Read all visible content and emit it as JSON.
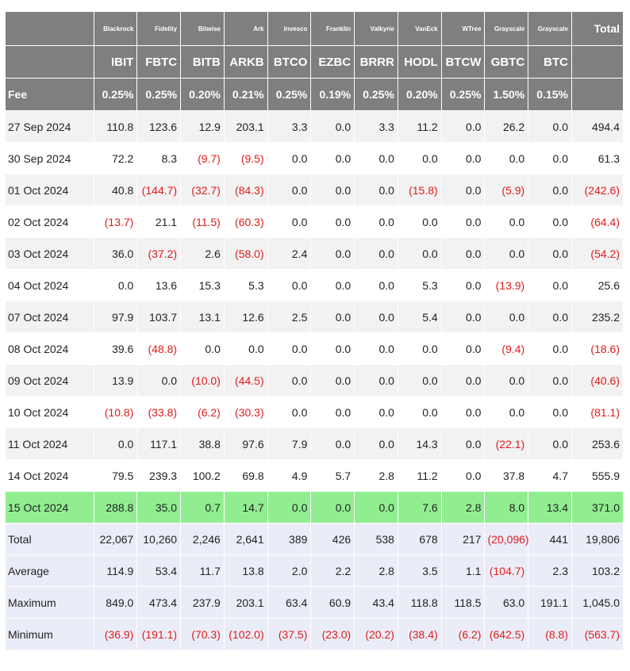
{
  "issuers": [
    "Blackrock",
    "Fidelity",
    "Bitwise",
    "Ark",
    "Invesco",
    "Franklin",
    "Valkyrie",
    "VanEck",
    "WTree",
    "Grayscale",
    "Grayscale"
  ],
  "total_label": "Total",
  "tickers": [
    "IBIT",
    "FBTC",
    "BITB",
    "ARKB",
    "BTCO",
    "EZBC",
    "BRRR",
    "HODL",
    "BTCW",
    "GBTC",
    "BTC"
  ],
  "fee_label": "Fee",
  "fees": [
    "0.25%",
    "0.25%",
    "0.20%",
    "0.21%",
    "0.25%",
    "0.19%",
    "0.25%",
    "0.20%",
    "0.25%",
    "1.50%",
    "0.15%"
  ],
  "colors": {
    "header_bg": "#7f7f7f",
    "row_alt": "#f2f2f2",
    "highlight": "#90ee90",
    "summary_bg": "#eaedf7",
    "negative": "#e01b1b"
  },
  "rows": [
    {
      "label": "27 Sep 2024",
      "values": [
        "110.8",
        "123.6",
        "12.9",
        "203.1",
        "3.3",
        "0.0",
        "3.3",
        "11.2",
        "0.0",
        "26.2",
        "0.0",
        "494.4"
      ]
    },
    {
      "label": "30 Sep 2024",
      "values": [
        "72.2",
        "8.3",
        "(9.7)",
        "(9.5)",
        "0.0",
        "0.0",
        "0.0",
        "0.0",
        "0.0",
        "0.0",
        "0.0",
        "61.3"
      ]
    },
    {
      "label": "01 Oct 2024",
      "values": [
        "40.8",
        "(144.7)",
        "(32.7)",
        "(84.3)",
        "0.0",
        "0.0",
        "0.0",
        "(15.8)",
        "0.0",
        "(5.9)",
        "0.0",
        "(242.6)"
      ]
    },
    {
      "label": "02 Oct 2024",
      "values": [
        "(13.7)",
        "21.1",
        "(11.5)",
        "(60.3)",
        "0.0",
        "0.0",
        "0.0",
        "0.0",
        "0.0",
        "0.0",
        "0.0",
        "(64.4)"
      ]
    },
    {
      "label": "03 Oct 2024",
      "values": [
        "36.0",
        "(37.2)",
        "2.6",
        "(58.0)",
        "2.4",
        "0.0",
        "0.0",
        "0.0",
        "0.0",
        "0.0",
        "0.0",
        "(54.2)"
      ]
    },
    {
      "label": "04 Oct 2024",
      "values": [
        "0.0",
        "13.6",
        "15.3",
        "5.3",
        "0.0",
        "0.0",
        "0.0",
        "5.3",
        "0.0",
        "(13.9)",
        "0.0",
        "25.6"
      ]
    },
    {
      "label": "07 Oct 2024",
      "values": [
        "97.9",
        "103.7",
        "13.1",
        "12.6",
        "2.5",
        "0.0",
        "0.0",
        "5.4",
        "0.0",
        "0.0",
        "0.0",
        "235.2"
      ]
    },
    {
      "label": "08 Oct 2024",
      "values": [
        "39.6",
        "(48.8)",
        "0.0",
        "0.0",
        "0.0",
        "0.0",
        "0.0",
        "0.0",
        "0.0",
        "(9.4)",
        "0.0",
        "(18.6)"
      ]
    },
    {
      "label": "09 Oct 2024",
      "values": [
        "13.9",
        "0.0",
        "(10.0)",
        "(44.5)",
        "0.0",
        "0.0",
        "0.0",
        "0.0",
        "0.0",
        "0.0",
        "0.0",
        "(40.6)"
      ]
    },
    {
      "label": "10 Oct 2024",
      "values": [
        "(10.8)",
        "(33.8)",
        "(6.2)",
        "(30.3)",
        "0.0",
        "0.0",
        "0.0",
        "0.0",
        "0.0",
        "0.0",
        "0.0",
        "(81.1)"
      ]
    },
    {
      "label": "11 Oct 2024",
      "values": [
        "0.0",
        "117.1",
        "38.8",
        "97.6",
        "7.9",
        "0.0",
        "0.0",
        "14.3",
        "0.0",
        "(22.1)",
        "0.0",
        "253.6"
      ]
    },
    {
      "label": "14 Oct 2024",
      "values": [
        "79.5",
        "239.3",
        "100.2",
        "69.8",
        "4.9",
        "5.7",
        "2.8",
        "11.2",
        "0.0",
        "37.8",
        "4.7",
        "555.9"
      ]
    },
    {
      "label": "15 Oct 2024",
      "highlight": true,
      "values": [
        "288.8",
        "35.0",
        "0.7",
        "14.7",
        "0.0",
        "0.0",
        "0.0",
        "7.6",
        "2.8",
        "8.0",
        "13.4",
        "371.0"
      ]
    }
  ],
  "summary": [
    {
      "label": "Total",
      "values": [
        "22,067",
        "10,260",
        "2,246",
        "2,641",
        "389",
        "426",
        "538",
        "678",
        "217",
        "(20,096)",
        "441",
        "19,806"
      ]
    },
    {
      "label": "Average",
      "values": [
        "114.9",
        "53.4",
        "11.7",
        "13.8",
        "2.0",
        "2.2",
        "2.8",
        "3.5",
        "1.1",
        "(104.7)",
        "2.3",
        "103.2"
      ]
    },
    {
      "label": "Maximum",
      "values": [
        "849.0",
        "473.4",
        "237.9",
        "203.1",
        "63.4",
        "60.9",
        "43.4",
        "118.8",
        "118.5",
        "63.0",
        "191.1",
        "1,045.0"
      ]
    },
    {
      "label": "Minimum",
      "values": [
        "(36.9)",
        "(191.1)",
        "(70.3)",
        "(102.0)",
        "(37.5)",
        "(23.0)",
        "(20.2)",
        "(38.4)",
        "(6.2)",
        "(642.5)",
        "(8.8)",
        "(563.7)"
      ]
    }
  ]
}
